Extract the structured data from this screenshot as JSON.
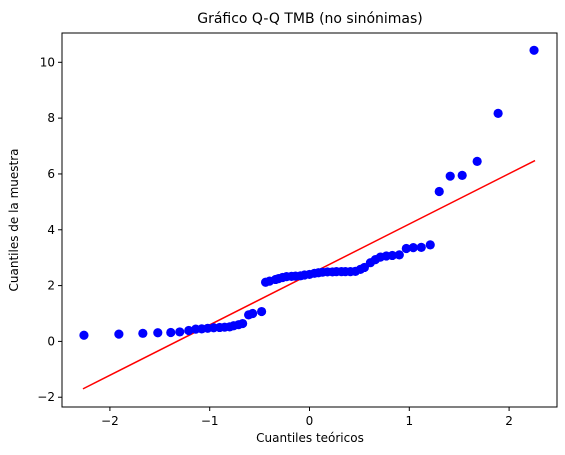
{
  "chart_data": {
    "type": "scatter",
    "title": "Gráfico Q-Q TMB (no sinónimas)",
    "xlabel": "Cuantiles teóricos",
    "ylabel": "Cuantiles de la muestra",
    "xlim": [
      -2.48,
      2.48
    ],
    "ylim": [
      -2.35,
      11.05
    ],
    "xticks": [
      -2,
      -1,
      0,
      1,
      2
    ],
    "xtick_labels": [
      "−2",
      "−1",
      "0",
      "1",
      "2"
    ],
    "yticks": [
      -2,
      0,
      2,
      4,
      6,
      8,
      10
    ],
    "ytick_labels": [
      "−2",
      "0",
      "2",
      "4",
      "6",
      "8",
      "10"
    ],
    "grid": false,
    "legend": false,
    "series": [
      {
        "type": "scatter",
        "color": "#0000ff",
        "points": [
          [
            -2.26,
            0.22
          ],
          [
            -1.91,
            0.26
          ],
          [
            -1.67,
            0.29
          ],
          [
            -1.52,
            0.31
          ],
          [
            -1.39,
            0.32
          ],
          [
            -1.3,
            0.34
          ],
          [
            -1.21,
            0.39
          ],
          [
            -1.14,
            0.44
          ],
          [
            -1.08,
            0.45
          ],
          [
            -1.02,
            0.47
          ],
          [
            -0.96,
            0.49
          ],
          [
            -0.9,
            0.5
          ],
          [
            -0.85,
            0.51
          ],
          [
            -0.8,
            0.52
          ],
          [
            -0.76,
            0.56
          ],
          [
            -0.71,
            0.6
          ],
          [
            -0.67,
            0.64
          ],
          [
            -0.61,
            0.95
          ],
          [
            -0.57,
            1.0
          ],
          [
            -0.48,
            1.07
          ],
          [
            -0.44,
            2.12
          ],
          [
            -0.4,
            2.16
          ],
          [
            -0.34,
            2.22
          ],
          [
            -0.31,
            2.25
          ],
          [
            -0.27,
            2.29
          ],
          [
            -0.23,
            2.32
          ],
          [
            -0.18,
            2.33
          ],
          [
            -0.14,
            2.34
          ],
          [
            -0.09,
            2.35
          ],
          [
            -0.05,
            2.38
          ],
          [
            0.0,
            2.4
          ],
          [
            0.05,
            2.44
          ],
          [
            0.09,
            2.46
          ],
          [
            0.13,
            2.48
          ],
          [
            0.18,
            2.49
          ],
          [
            0.23,
            2.49
          ],
          [
            0.27,
            2.5
          ],
          [
            0.32,
            2.5
          ],
          [
            0.36,
            2.5
          ],
          [
            0.41,
            2.5
          ],
          [
            0.46,
            2.51
          ],
          [
            0.51,
            2.58
          ],
          [
            0.55,
            2.65
          ],
          [
            0.61,
            2.82
          ],
          [
            0.66,
            2.93
          ],
          [
            0.71,
            3.02
          ],
          [
            0.77,
            3.06
          ],
          [
            0.83,
            3.08
          ],
          [
            0.9,
            3.1
          ],
          [
            0.97,
            3.33
          ],
          [
            1.04,
            3.36
          ],
          [
            1.12,
            3.37
          ],
          [
            1.21,
            3.46
          ],
          [
            1.3,
            5.37
          ],
          [
            1.41,
            5.92
          ],
          [
            1.53,
            5.95
          ],
          [
            1.68,
            6.45
          ],
          [
            1.89,
            8.17
          ],
          [
            2.25,
            10.43
          ]
        ]
      },
      {
        "type": "line",
        "color": "#ff0000",
        "points": [
          [
            -2.27,
            -1.7
          ],
          [
            2.26,
            6.48
          ]
        ]
      }
    ]
  }
}
